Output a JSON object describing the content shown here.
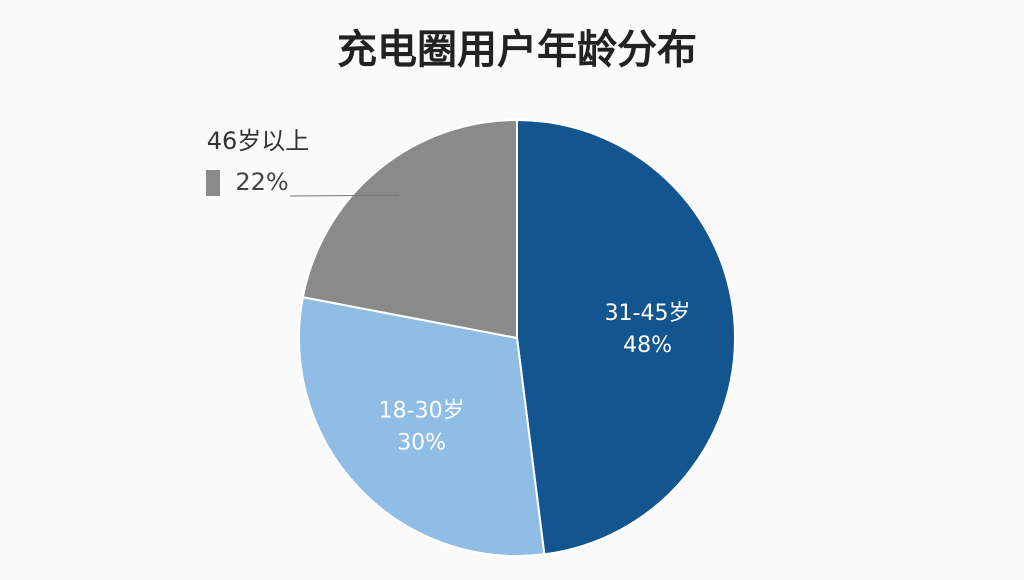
{
  "chart_data": {
    "type": "pie",
    "title": "充电圈用户年龄分布",
    "categories": [
      "31-45岁",
      "18-30岁",
      "46岁以上"
    ],
    "values": [
      48,
      30,
      22
    ],
    "value_labels": [
      "48%",
      "30%",
      "22%"
    ],
    "colors": [
      "#13558f",
      "#8fbde6",
      "#8a8a8a"
    ]
  }
}
